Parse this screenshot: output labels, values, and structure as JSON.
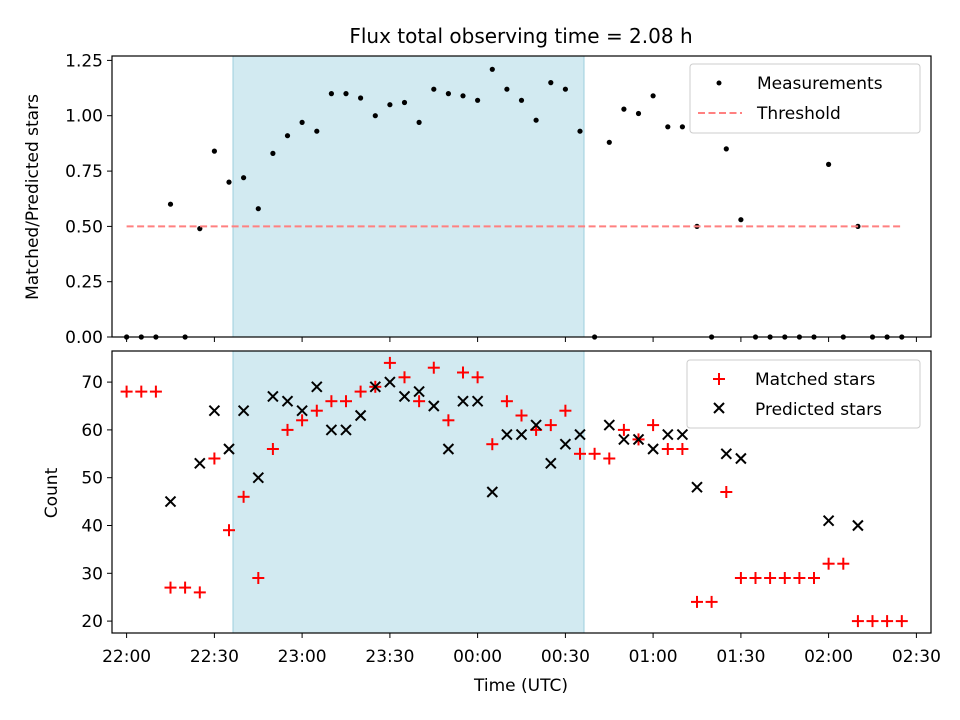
{
  "chart_data": [
    {
      "type": "scatter",
      "title": "Flux total observing time = 2.08 h",
      "xlabel": "",
      "ylabel": "Matched/Predicted stars",
      "xlim": [
        "21:55",
        "02:35"
      ],
      "ylim": [
        0,
        1.27
      ],
      "ytick_labels": [
        "0.00",
        "0.25",
        "0.50",
        "0.75",
        "1.00",
        "1.25"
      ],
      "shaded_region": {
        "x": [
          "22:30",
          "00:35"
        ],
        "color": "#add8e6"
      },
      "legend_position": "top-right",
      "grid": false,
      "series": [
        {
          "name": "Measurements",
          "marker": "dot",
          "color": "#000000",
          "x": [
            "22:00",
            "22:05",
            "22:10",
            "22:15",
            "22:20",
            "22:25",
            "22:30",
            "22:35",
            "22:40",
            "22:45",
            "22:50",
            "22:55",
            "23:00",
            "23:05",
            "23:10",
            "23:15",
            "23:20",
            "23:25",
            "23:30",
            "23:35",
            "23:40",
            "23:45",
            "23:50",
            "23:55",
            "00:00",
            "00:05",
            "00:10",
            "00:15",
            "00:20",
            "00:25",
            "00:30",
            "00:35",
            "00:40",
            "00:45",
            "00:50",
            "00:55",
            "01:00",
            "01:05",
            "01:10",
            "01:15",
            "01:20",
            "01:25",
            "01:30",
            "01:35",
            "01:40",
            "01:45",
            "01:50",
            "01:55",
            "02:00",
            "02:05",
            "02:10",
            "02:15",
            "02:20",
            "02:25"
          ],
          "y": [
            0,
            0,
            0,
            0.6,
            0,
            0.49,
            0.84,
            0.7,
            0.72,
            0.58,
            0.83,
            0.91,
            0.97,
            0.93,
            1.1,
            1.1,
            1.08,
            1.0,
            1.05,
            1.06,
            0.97,
            1.12,
            1.1,
            1.09,
            1.07,
            1.21,
            1.12,
            1.07,
            0.98,
            1.15,
            1.12,
            0.93,
            0,
            0.88,
            1.03,
            1.01,
            1.09,
            0.95,
            0.95,
            0.5,
            0,
            0.85,
            0.53,
            0,
            0,
            0,
            0,
            0,
            0.78,
            0,
            0.5,
            0,
            0,
            0
          ]
        },
        {
          "name": "Threshold",
          "style": "dashed",
          "color": "#ff8080",
          "x": [
            "22:00",
            "02:25"
          ],
          "y": [
            0.5,
            0.5
          ]
        }
      ]
    },
    {
      "type": "scatter",
      "title": "",
      "xlabel": "Time (UTC)",
      "ylabel": "Count",
      "xlim": [
        "21:55",
        "02:35"
      ],
      "ylim": [
        17.5,
        76.5
      ],
      "ytick_labels": [
        "20",
        "30",
        "40",
        "50",
        "60",
        "70"
      ],
      "xtick_labels": [
        "22:00",
        "22:30",
        "23:00",
        "23:30",
        "00:00",
        "00:30",
        "01:00",
        "01:30",
        "02:00",
        "02:30"
      ],
      "shaded_region": {
        "x": [
          "22:30",
          "00:35"
        ],
        "color": "#add8e6"
      },
      "legend_position": "top-right",
      "grid": false,
      "series": [
        {
          "name": "Matched stars",
          "marker": "plus",
          "color": "#ff0000",
          "x": [
            "22:00",
            "22:05",
            "22:10",
            "22:15",
            "22:20",
            "22:25",
            "22:30",
            "22:35",
            "22:40",
            "22:45",
            "22:50",
            "22:55",
            "23:00",
            "23:05",
            "23:10",
            "23:15",
            "23:20",
            "23:25",
            "23:30",
            "23:35",
            "23:40",
            "23:45",
            "23:50",
            "23:55",
            "00:00",
            "00:05",
            "00:10",
            "00:15",
            "00:20",
            "00:25",
            "00:30",
            "00:35",
            "00:40",
            "00:45",
            "00:50",
            "00:55",
            "01:00",
            "01:05",
            "01:10",
            "01:15",
            "01:20",
            "01:25",
            "01:30",
            "01:35",
            "01:40",
            "01:45",
            "01:50",
            "01:55",
            "02:00",
            "02:05",
            "02:10",
            "02:15",
            "02:20",
            "02:25"
          ],
          "y": [
            68,
            68,
            68,
            27,
            27,
            26,
            54,
            39,
            46,
            29,
            56,
            60,
            62,
            64,
            66,
            66,
            68,
            69,
            74,
            71,
            66,
            73,
            62,
            72,
            71,
            57,
            66,
            63,
            60,
            61,
            64,
            55,
            55,
            54,
            60,
            58,
            61,
            56,
            56,
            24,
            24,
            47,
            29,
            29,
            29,
            29,
            29,
            29,
            32,
            32,
            20,
            20,
            20,
            20
          ]
        },
        {
          "name": "Predicted stars",
          "marker": "x",
          "color": "#000000",
          "x": [
            "22:15",
            "22:25",
            "22:30",
            "22:35",
            "22:40",
            "22:45",
            "22:50",
            "22:55",
            "23:00",
            "23:05",
            "23:10",
            "23:15",
            "23:20",
            "23:25",
            "23:30",
            "23:35",
            "23:40",
            "23:45",
            "23:50",
            "23:55",
            "00:00",
            "00:05",
            "00:10",
            "00:15",
            "00:20",
            "00:25",
            "00:30",
            "00:35",
            "00:45",
            "00:50",
            "00:55",
            "01:00",
            "01:05",
            "01:10",
            "01:15",
            "01:25",
            "01:30",
            "02:00",
            "02:10"
          ],
          "y": [
            45,
            53,
            64,
            56,
            64,
            50,
            67,
            66,
            64,
            69,
            60,
            60,
            63,
            69,
            70,
            67,
            68,
            65,
            56,
            66,
            66,
            47,
            59,
            59,
            61,
            53,
            57,
            59,
            61,
            58,
            58,
            56,
            59,
            59,
            48,
            55,
            54,
            41,
            40
          ]
        }
      ]
    }
  ]
}
